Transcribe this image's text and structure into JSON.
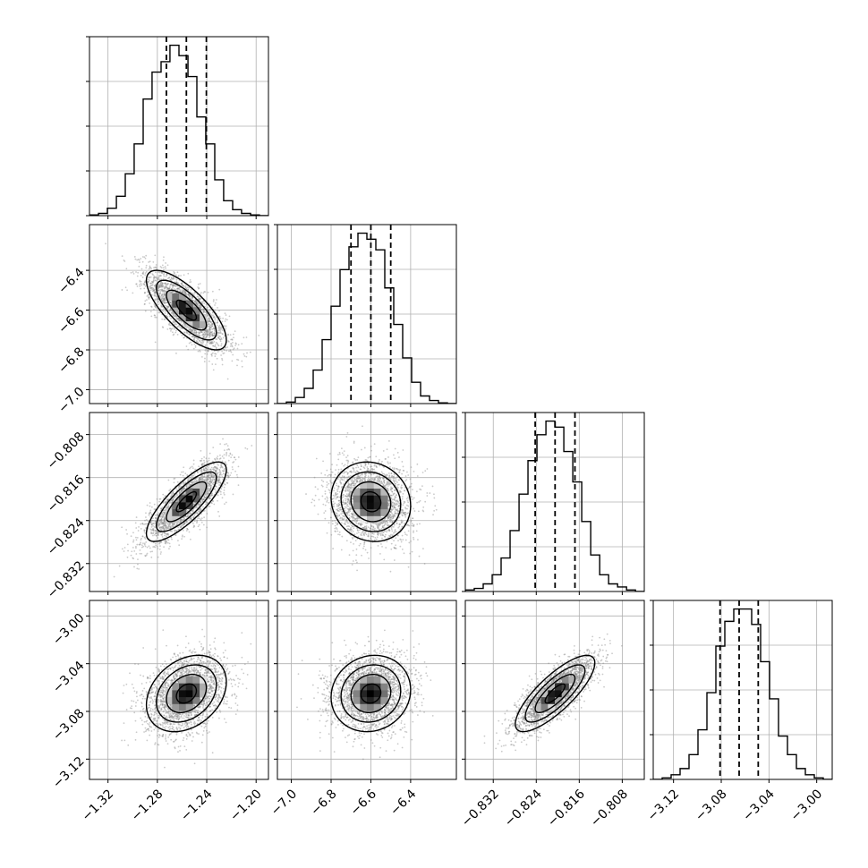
{
  "chart_data": {
    "type": "corner",
    "parameters": [
      {
        "name": "",
        "range": [
          -1.335,
          -1.19
        ],
        "ticks": [
          -1.32,
          -1.28,
          -1.24,
          -1.2
        ],
        "tick_labels": [
          "−1.32",
          "−1.28",
          "−1.24",
          "−1.20"
        ],
        "quantiles": [
          -1.2727,
          -1.2565,
          -1.2403
        ],
        "mean": -1.2565,
        "sd": 0.0162,
        "hist_bins": [
          -1.335,
          -1.3277,
          -1.3205,
          -1.3132,
          -1.306,
          -1.2988,
          -1.2915,
          -1.2843,
          -1.277,
          -1.2698,
          -1.2625,
          -1.2552,
          -1.248,
          -1.2408,
          -1.2335,
          -1.2263,
          -1.219,
          -1.2118,
          -1.2045,
          -1.1973,
          -1.19
        ],
        "hist_counts": [
          0.5,
          1.5,
          5,
          13,
          28,
          48,
          78,
          96,
          103,
          114,
          107,
          93,
          66,
          48,
          24,
          10,
          4,
          1.5,
          0.5,
          0
        ]
      },
      {
        "name": "",
        "range": [
          -7.07,
          -6.17
        ],
        "ticks": [
          -7.0,
          -6.8,
          -6.6,
          -6.4
        ],
        "tick_labels": [
          "−7.0",
          "−6.8",
          "−6.6",
          "−6.4"
        ],
        "quantiles": [
          -6.7,
          -6.6,
          -6.5
        ],
        "mean": -6.6,
        "sd": 0.1,
        "hist_bins": [
          -7.07,
          -7.025,
          -6.98,
          -6.935,
          -6.89,
          -6.845,
          -6.8,
          -6.755,
          -6.71,
          -6.665,
          -6.62,
          -6.575,
          -6.53,
          -6.485,
          -6.44,
          -6.395,
          -6.35,
          -6.305,
          -6.26,
          -6.215,
          -6.17
        ],
        "hist_counts": [
          0,
          1,
          4,
          10,
          22,
          42,
          64,
          88,
          103,
          112,
          108,
          101,
          76,
          52,
          30,
          14,
          5,
          2,
          0.5,
          0
        ]
      },
      {
        "name": "",
        "range": [
          -0.8372,
          -0.8039
        ],
        "ticks": [
          -0.832,
          -0.824,
          -0.816,
          -0.808
        ],
        "tick_labels": [
          "−0.832",
          "−0.824",
          "−0.816",
          "−0.808"
        ],
        "quantiles": [
          -0.8242,
          -0.8205,
          -0.8168
        ],
        "mean": -0.8205,
        "sd": 0.0037,
        "hist_bins": [
          -0.8372,
          -0.83553,
          -0.83387,
          -0.8322,
          -0.83054,
          -0.82887,
          -0.8272,
          -0.82554,
          -0.82387,
          -0.8222,
          -0.82054,
          -0.81887,
          -0.8172,
          -0.81554,
          -0.81387,
          -0.8122,
          -0.81054,
          -0.80887,
          -0.8072,
          -0.80554,
          -0.8039
        ],
        "hist_counts": [
          1,
          2,
          5,
          11,
          22,
          40,
          64,
          86,
          103,
          112,
          108,
          92,
          72,
          46,
          24,
          11,
          5,
          3,
          1,
          0
        ]
      },
      {
        "name": "",
        "range": [
          -3.137,
          -2.987
        ],
        "ticks": [
          -3.12,
          -3.08,
          -3.04,
          -3.0
        ],
        "tick_labels": [
          "−3.12",
          "−3.08",
          "−3.04",
          "−3.00"
        ],
        "quantiles": [
          -3.081,
          -3.065,
          -3.049
        ],
        "mean": -3.065,
        "sd": 0.016,
        "hist_bins": [
          -3.137,
          -3.1295,
          -3.122,
          -3.1145,
          -3.107,
          -3.0995,
          -3.092,
          -3.0845,
          -3.077,
          -3.0695,
          -3.062,
          -3.0545,
          -3.047,
          -3.0395,
          -3.032,
          -3.0245,
          -3.017,
          -3.0095,
          -3.002,
          -2.9945,
          -2.987
        ],
        "hist_counts": [
          0,
          1,
          3,
          7,
          16,
          32,
          56,
          86,
          102,
          110,
          110,
          100,
          76,
          52,
          28,
          16,
          7,
          3,
          1,
          0
        ]
      }
    ],
    "correlations": [
      [
        1,
        -0.75,
        0.8,
        0.3
      ],
      [
        -0.75,
        1,
        -0.1,
        0.1
      ],
      [
        0.8,
        -0.1,
        1,
        0.8
      ],
      [
        0.3,
        0.1,
        0.8,
        1
      ]
    ],
    "contour_levels_sigma": [
      0.5,
      1.0,
      1.5,
      2.0
    ],
    "samples_shown": 2500,
    "grid": true,
    "quantile_line_style": "dashed",
    "colors": {
      "line": "#000000",
      "grid": "#b0b0b0",
      "points": "#8a8a8a",
      "background": "#ffffff"
    }
  }
}
